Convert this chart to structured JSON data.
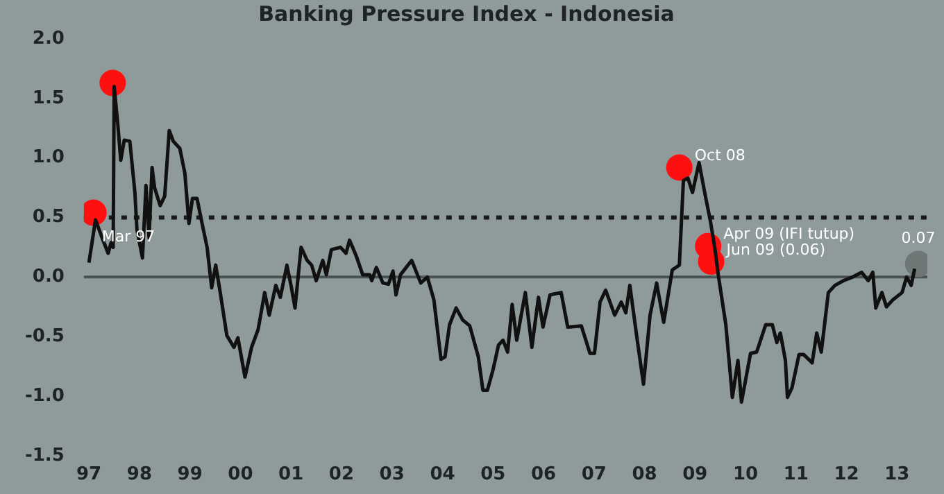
{
  "chart_data": {
    "type": "line",
    "title": "Banking Pressure Index - Indonesia",
    "xlim": [
      1996.9,
      2013.6
    ],
    "xticks": [
      {
        "value": 1997,
        "label": "97"
      },
      {
        "value": 1998,
        "label": "98"
      },
      {
        "value": 1999,
        "label": "99"
      },
      {
        "value": 2000,
        "label": "00"
      },
      {
        "value": 2001,
        "label": "01"
      },
      {
        "value": 2002,
        "label": "02"
      },
      {
        "value": 2003,
        "label": "03"
      },
      {
        "value": 2004,
        "label": "04"
      },
      {
        "value": 2005,
        "label": "05"
      },
      {
        "value": 2006,
        "label": "06"
      },
      {
        "value": 2007,
        "label": "07"
      },
      {
        "value": 2008,
        "label": "08"
      },
      {
        "value": 2009,
        "label": "09"
      },
      {
        "value": 2010,
        "label": "10"
      },
      {
        "value": 2011,
        "label": "11"
      },
      {
        "value": 2012,
        "label": "12"
      },
      {
        "value": 2013,
        "label": "13"
      }
    ],
    "ylim": [
      -1.5,
      2.0
    ],
    "yticks": [
      {
        "value": -1.5,
        "label": "-1.5"
      },
      {
        "value": -1.0,
        "label": "-1.0"
      },
      {
        "value": -0.5,
        "label": "-0.5"
      },
      {
        "value": 0,
        "label": "0.0"
      },
      {
        "value": 0.5,
        "label": "0.5"
      },
      {
        "value": 1.0,
        "label": "1.0"
      },
      {
        "value": 1.5,
        "label": "1.5"
      },
      {
        "value": 2.0,
        "label": "2.0"
      }
    ],
    "grid": false,
    "legend": false,
    "series": [
      {
        "color": "#111111",
        "marker": "none",
        "line_style": "solid",
        "x": [
          1997.0,
          1997.13,
          1997.26,
          1997.38,
          1997.44,
          1997.48,
          1997.5,
          1997.57,
          1997.63,
          1997.7,
          1997.81,
          1997.91,
          1997.95,
          1998.06,
          1998.13,
          1998.19,
          1998.25,
          1998.3,
          1998.41,
          1998.5,
          1998.59,
          1998.67,
          1998.8,
          1998.9,
          1998.98,
          1999.05,
          1999.14,
          1999.25,
          1999.34,
          1999.43,
          1999.51,
          1999.6,
          1999.73,
          1999.87,
          1999.95,
          2000.09,
          2000.22,
          2000.35,
          2000.48,
          2000.57,
          2000.7,
          2000.79,
          2000.92,
          2001.01,
          2001.08,
          2001.2,
          2001.32,
          2001.41,
          2001.5,
          2001.63,
          2001.7,
          2001.8,
          2001.98,
          2002.09,
          2002.16,
          2002.29,
          2002.42,
          2002.56,
          2002.6,
          2002.69,
          2002.82,
          2002.93,
          2003.02,
          2003.08,
          2003.17,
          2003.39,
          2003.57,
          2003.7,
          2003.83,
          2003.97,
          2004.05,
          2004.14,
          2004.27,
          2004.4,
          2004.54,
          2004.71,
          2004.8,
          2004.89,
          2005.0,
          2005.11,
          2005.2,
          2005.29,
          2005.38,
          2005.47,
          2005.64,
          2005.77,
          2005.9,
          2005.99,
          2006.13,
          2006.35,
          2006.48,
          2006.75,
          2006.92,
          2007.01,
          2007.12,
          2007.23,
          2007.41,
          2007.54,
          2007.63,
          2007.71,
          2007.85,
          2007.98,
          2008.11,
          2008.24,
          2008.38,
          2008.55,
          2008.69,
          2008.77,
          2008.86,
          2008.95,
          2009.08,
          2009.21,
          2009.3,
          2009.39,
          2009.46,
          2009.61,
          2009.74,
          2009.85,
          2009.92,
          2010.1,
          2010.22,
          2010.4,
          2010.53,
          2010.62,
          2010.69,
          2010.79,
          2010.83,
          2010.92,
          2011.06,
          2011.15,
          2011.32,
          2011.41,
          2011.5,
          2011.64,
          2011.77,
          2011.94,
          2012.12,
          2012.3,
          2012.43,
          2012.52,
          2012.58,
          2012.7,
          2012.79,
          2012.92,
          2013.1,
          2013.19,
          2013.28,
          2013.35
        ],
        "values": [
          0.12,
          0.48,
          0.33,
          0.2,
          0.29,
          0.25,
          1.6,
          1.29,
          0.98,
          1.15,
          1.14,
          0.71,
          0.4,
          0.16,
          0.77,
          0.33,
          0.92,
          0.75,
          0.6,
          0.68,
          1.23,
          1.14,
          1.08,
          0.87,
          0.45,
          0.66,
          0.66,
          0.43,
          0.25,
          -0.09,
          0.1,
          -0.13,
          -0.49,
          -0.59,
          -0.51,
          -0.84,
          -0.59,
          -0.44,
          -0.13,
          -0.32,
          -0.07,
          -0.17,
          0.1,
          -0.09,
          -0.26,
          0.25,
          0.14,
          0.1,
          -0.03,
          0.14,
          0.02,
          0.23,
          0.25,
          0.2,
          0.31,
          0.18,
          0.02,
          0.02,
          -0.03,
          0.08,
          -0.05,
          -0.06,
          0.05,
          -0.15,
          0.02,
          0.14,
          -0.05,
          0.0,
          -0.19,
          -0.69,
          -0.67,
          -0.4,
          -0.26,
          -0.36,
          -0.41,
          -0.67,
          -0.95,
          -0.95,
          -0.78,
          -0.57,
          -0.53,
          -0.63,
          -0.23,
          -0.53,
          -0.13,
          -0.59,
          -0.17,
          -0.42,
          -0.15,
          -0.13,
          -0.42,
          -0.41,
          -0.64,
          -0.64,
          -0.21,
          -0.11,
          -0.32,
          -0.21,
          -0.3,
          -0.07,
          -0.51,
          -0.9,
          -0.32,
          -0.05,
          -0.38,
          0.06,
          0.1,
          0.81,
          0.83,
          0.71,
          0.96,
          0.67,
          0.48,
          0.25,
          0.02,
          -0.4,
          -1.01,
          -0.7,
          -1.05,
          -0.64,
          -0.63,
          -0.4,
          -0.4,
          -0.55,
          -0.47,
          -0.7,
          -1.01,
          -0.93,
          -0.65,
          -0.65,
          -0.72,
          -0.47,
          -0.63,
          -0.13,
          -0.07,
          -0.03,
          0.0,
          0.04,
          -0.03,
          0.04,
          -0.26,
          -0.13,
          -0.25,
          -0.19,
          -0.13,
          0.0,
          -0.07,
          0.07
        ]
      },
      {
        "type": "scatter",
        "color": "#ff1010",
        "marker": "circle",
        "x": [
          1997.09,
          1997.47,
          2008.69,
          2009.26,
          2009.32
        ],
        "values": [
          0.54,
          1.63,
          0.92,
          0.26,
          0.13
        ]
      },
      {
        "type": "scatter",
        "color": "#6e7676",
        "marker": "circle",
        "x": [
          2013.42
        ],
        "values": [
          0.11
        ]
      }
    ],
    "ref_lines": [
      {
        "axis": "y",
        "value": 0.5,
        "color": "#1a1a1a",
        "line_style": "dotted"
      },
      {
        "axis": "y",
        "value": 0,
        "color": "#4a5252",
        "line_style": "solid"
      }
    ],
    "annotations": [
      {
        "text": "Mar 97",
        "x": 1997.09,
        "y": 0.54
      },
      {
        "text": "Oct 08",
        "x": 2008.69,
        "y": 0.92
      },
      {
        "text": "Apr 09 (IFI tutup)",
        "x": 2009.26,
        "y": 0.26
      },
      {
        "text": "Jun 09 (0.06)",
        "x": 2009.32,
        "y": 0.13
      },
      {
        "text": "0.07",
        "x": 2013.42,
        "y": 0.11
      }
    ]
  }
}
